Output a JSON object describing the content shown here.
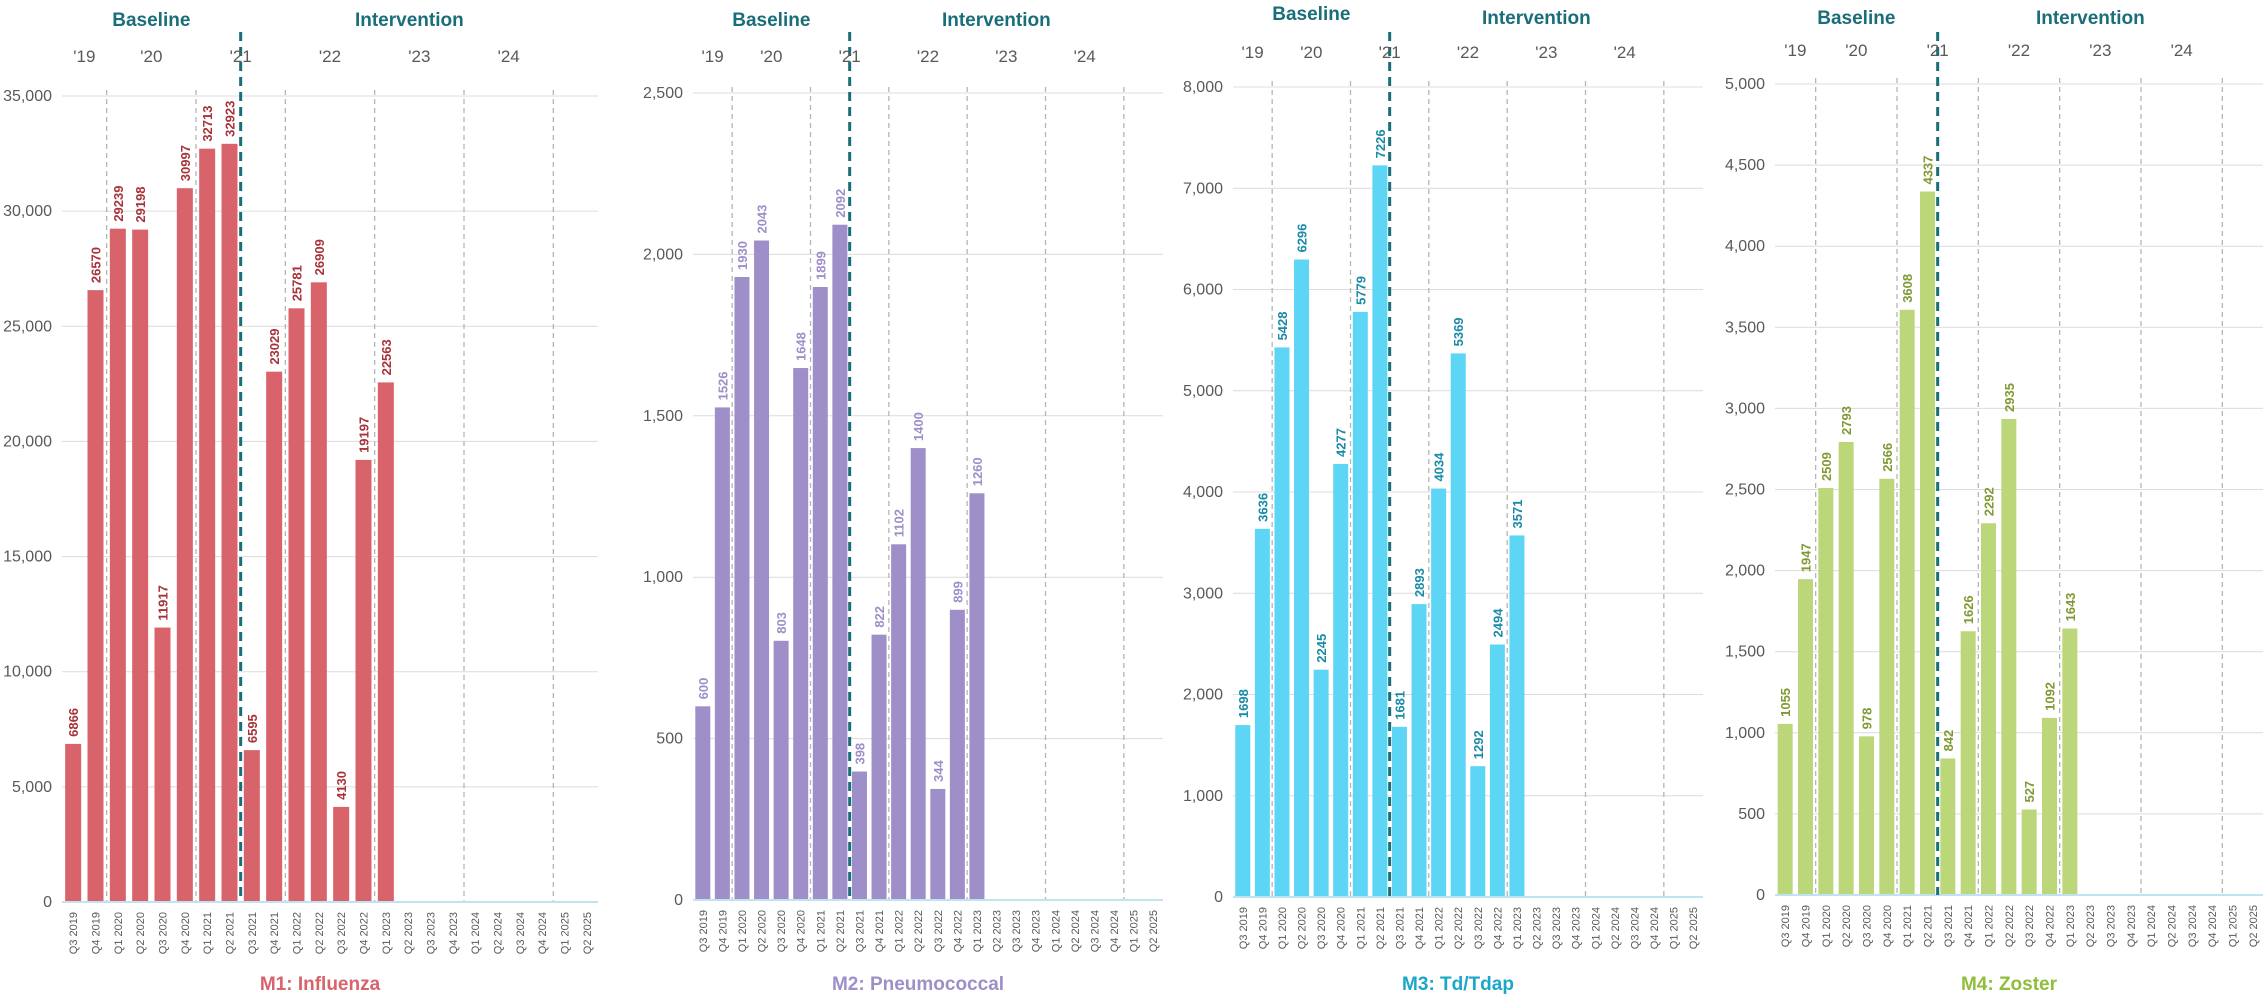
{
  "chart_data": [
    {
      "type": "bar",
      "title": "M1: Influenza",
      "color": "#d9636b",
      "label_color": "#a8323a",
      "phase_labels": [
        "Baseline",
        "Intervention"
      ],
      "year_labels": [
        "'19",
        "'20",
        "'21",
        "'22",
        "'23",
        "'24"
      ],
      "categories": [
        "Q3 2019",
        "Q4 2019",
        "Q1 2020",
        "Q2 2020",
        "Q3 2020",
        "Q4 2020",
        "Q1 2021",
        "Q2 2021",
        "Q3 2021",
        "Q4 2021",
        "Q1 2022",
        "Q2 2022",
        "Q3 2022",
        "Q4 2022",
        "Q1 2023",
        "Q2 2023",
        "Q3 2023",
        "Q4 2023",
        "Q1 2024",
        "Q2 2024",
        "Q3 2024",
        "Q4 2024",
        "Q1 2025",
        "Q2 2025"
      ],
      "values": [
        6866,
        26570,
        29239,
        29198,
        11917,
        30997,
        32713,
        32923,
        6595,
        23029,
        25781,
        26909,
        4130,
        19197,
        22563,
        null,
        null,
        null,
        null,
        null,
        null,
        null,
        null,
        null
      ],
      "ylim": [
        0,
        35000
      ],
      "yticks": [
        0,
        5000,
        10000,
        15000,
        20000,
        25000,
        30000,
        35000
      ],
      "ytick_labels": [
        "0",
        "5,000",
        "10,000",
        "15,000",
        "20,000",
        "25,000",
        "30,000",
        "35,000"
      ]
    },
    {
      "type": "bar",
      "title": "M2: Pneumococcal",
      "color": "#9e8fc9",
      "label_color": "#9e8fc9",
      "phase_labels": [
        "Baseline",
        "Intervention"
      ],
      "year_labels": [
        "'19",
        "'20",
        "'21",
        "'22",
        "'23",
        "'24"
      ],
      "categories": [
        "Q3 2019",
        "Q4 2019",
        "Q1 2020",
        "Q2 2020",
        "Q3 2020",
        "Q4 2020",
        "Q1 2021",
        "Q2 2021",
        "Q3 2021",
        "Q4 2021",
        "Q1 2022",
        "Q2 2022",
        "Q3 2022",
        "Q4 2022",
        "Q1 2023",
        "Q2 2023",
        "Q3 2023",
        "Q4 2023",
        "Q1 2024",
        "Q2 2024",
        "Q3 2024",
        "Q4 2024",
        "Q1 2025",
        "Q2 2025"
      ],
      "values": [
        600,
        1526,
        1930,
        2043,
        803,
        1648,
        1899,
        2092,
        398,
        822,
        1102,
        1400,
        344,
        899,
        1260,
        null,
        null,
        null,
        null,
        null,
        null,
        null,
        null,
        null
      ],
      "ylim": [
        0,
        2500
      ],
      "yticks": [
        0,
        500,
        1000,
        1500,
        2000,
        2500
      ],
      "ytick_labels": [
        "0",
        "500",
        "1,000",
        "1,500",
        "2,000",
        "2,500"
      ]
    },
    {
      "type": "bar",
      "title": "M3: Td/Tdap",
      "color": "#5dd5f5",
      "label_color": "#1a8ba6",
      "phase_labels": [
        "Baseline",
        "Intervention"
      ],
      "year_labels": [
        "'19",
        "'20",
        "'21",
        "'22",
        "'23",
        "'24"
      ],
      "categories": [
        "Q3 2019",
        "Q4 2019",
        "Q1 2020",
        "Q2 2020",
        "Q3 2020",
        "Q4 2020",
        "Q1 2021",
        "Q2 2021",
        "Q3 2021",
        "Q4 2021",
        "Q1 2022",
        "Q2 2022",
        "Q3 2022",
        "Q4 2022",
        "Q1 2023",
        "Q2 2023",
        "Q3 2023",
        "Q4 2023",
        "Q1 2024",
        "Q2 2024",
        "Q3 2024",
        "Q4 2024",
        "Q1 2025",
        "Q2 2025"
      ],
      "values": [
        1698,
        3636,
        5428,
        6296,
        2245,
        4277,
        5779,
        7226,
        1681,
        2893,
        4034,
        5369,
        1292,
        2494,
        3571,
        null,
        null,
        null,
        null,
        null,
        null,
        null,
        null,
        null
      ],
      "ylim": [
        0,
        8000
      ],
      "yticks": [
        0,
        1000,
        2000,
        3000,
        4000,
        5000,
        6000,
        7000,
        8000
      ],
      "ytick_labels": [
        "0",
        "1,000",
        "2,000",
        "3,000",
        "4,000",
        "5,000",
        "6,000",
        "7,000",
        "8,000"
      ]
    },
    {
      "type": "bar",
      "title": "M4: Zoster",
      "color": "#bcd67a",
      "label_color": "#7f9a32",
      "phase_labels": [
        "Baseline",
        "Intervention"
      ],
      "year_labels": [
        "'19",
        "'20",
        "'21",
        "'22",
        "'23",
        "'24"
      ],
      "categories": [
        "Q3 2019",
        "Q4 2019",
        "Q1 2020",
        "Q2 2020",
        "Q3 2020",
        "Q4 2020",
        "Q1 2021",
        "Q2 2021",
        "Q3 2021",
        "Q4 2021",
        "Q1 2022",
        "Q2 2022",
        "Q3 2022",
        "Q4 2022",
        "Q1 2023",
        "Q2 2023",
        "Q3 2023",
        "Q4 2023",
        "Q1 2024",
        "Q2 2024",
        "Q3 2024",
        "Q4 2024",
        "Q1 2025",
        "Q2 2025"
      ],
      "values": [
        1055,
        1947,
        2509,
        2793,
        978,
        2566,
        3608,
        4337,
        842,
        1626,
        2292,
        2935,
        527,
        1092,
        1643,
        null,
        null,
        null,
        null,
        null,
        null,
        null,
        null,
        null
      ],
      "ylim": [
        0,
        5000
      ],
      "yticks": [
        0,
        500,
        1000,
        1500,
        2000,
        2500,
        3000,
        3500,
        4000,
        4500,
        5000
      ],
      "ytick_labels": [
        "0",
        "500",
        "1,000",
        "1,500",
        "2,000",
        "2,500",
        "3,000",
        "3,500",
        "4,000",
        "4,500",
        "5,000"
      ]
    }
  ],
  "colors": {
    "phase_label": "#1a6e7a",
    "phase_divider": "#1a6e7a",
    "year_divider": "#b5b5b5",
    "gridline": "#dcdcdc",
    "axis_text": "#595959",
    "baseline_axis": "#bfe4ef"
  }
}
